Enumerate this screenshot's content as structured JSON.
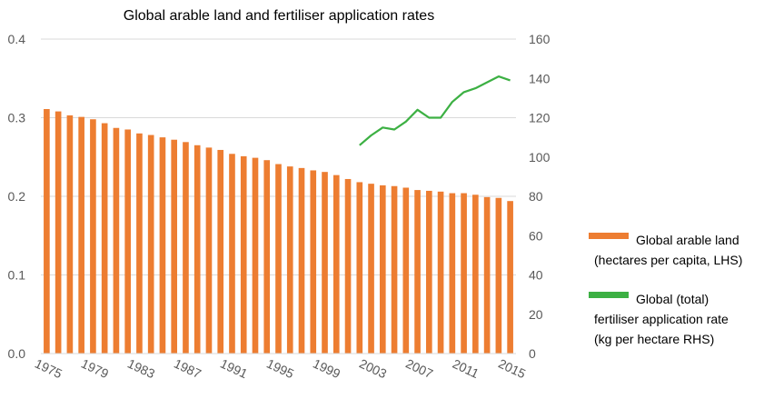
{
  "chart_data": {
    "type": "bar",
    "title": "Global arable land and fertiliser application rates",
    "x": [
      1975,
      1976,
      1977,
      1978,
      1979,
      1980,
      1981,
      1982,
      1983,
      1984,
      1985,
      1986,
      1987,
      1988,
      1989,
      1990,
      1991,
      1992,
      1993,
      1994,
      1995,
      1996,
      1997,
      1998,
      1999,
      2000,
      2001,
      2002,
      2003,
      2004,
      2005,
      2006,
      2007,
      2008,
      2009,
      2010,
      2011,
      2012,
      2013,
      2014,
      2015
    ],
    "x_tick_labels": [
      "1975",
      "1979",
      "1983",
      "1987",
      "1991",
      "1995",
      "1999",
      "2003",
      "2007",
      "2011",
      "2015"
    ],
    "series": [
      {
        "name": "Global arable land",
        "axis": "left",
        "color": "#ED7D31",
        "values": [
          0.311,
          0.308,
          0.303,
          0.301,
          0.298,
          0.293,
          0.287,
          0.285,
          0.28,
          0.278,
          0.275,
          0.272,
          0.269,
          0.265,
          0.262,
          0.259,
          0.254,
          0.251,
          0.249,
          0.246,
          0.241,
          0.238,
          0.236,
          0.233,
          0.231,
          0.227,
          0.222,
          0.218,
          0.216,
          0.214,
          0.213,
          0.211,
          0.208,
          0.207,
          0.206,
          0.204,
          0.204,
          0.202,
          0.199,
          0.198,
          0.194
        ]
      },
      {
        "name": "Global (total) fertiliser application rate",
        "axis": "right",
        "color": "#3CB043",
        "x": [
          2002,
          2003,
          2004,
          2005,
          2006,
          2007,
          2008,
          2009,
          2010,
          2011,
          2012,
          2013,
          2014,
          2015
        ],
        "values": [
          106,
          111,
          115,
          114,
          118,
          124,
          120,
          120,
          128,
          133,
          135,
          138,
          141,
          139
        ]
      }
    ],
    "y_left": {
      "min": 0,
      "max": 0.4,
      "ticks": [
        "0.0",
        "0.1",
        "0.2",
        "0.3",
        "0.4"
      ]
    },
    "y_right": {
      "min": 0,
      "max": 160,
      "ticks": [
        "0",
        "20",
        "40",
        "60",
        "80",
        "100",
        "120",
        "140",
        "160"
      ]
    },
    "grid": true,
    "legend_position": "right"
  },
  "legend": {
    "items": [
      {
        "lines": [
          "Global arable land",
          "(hectares per capita, LHS)"
        ],
        "color": "#ED7D31"
      },
      {
        "lines": [
          "Global (total)",
          "fertiliser application rate",
          "(kg per hectare RHS)"
        ],
        "color": "#3CB043"
      }
    ]
  }
}
